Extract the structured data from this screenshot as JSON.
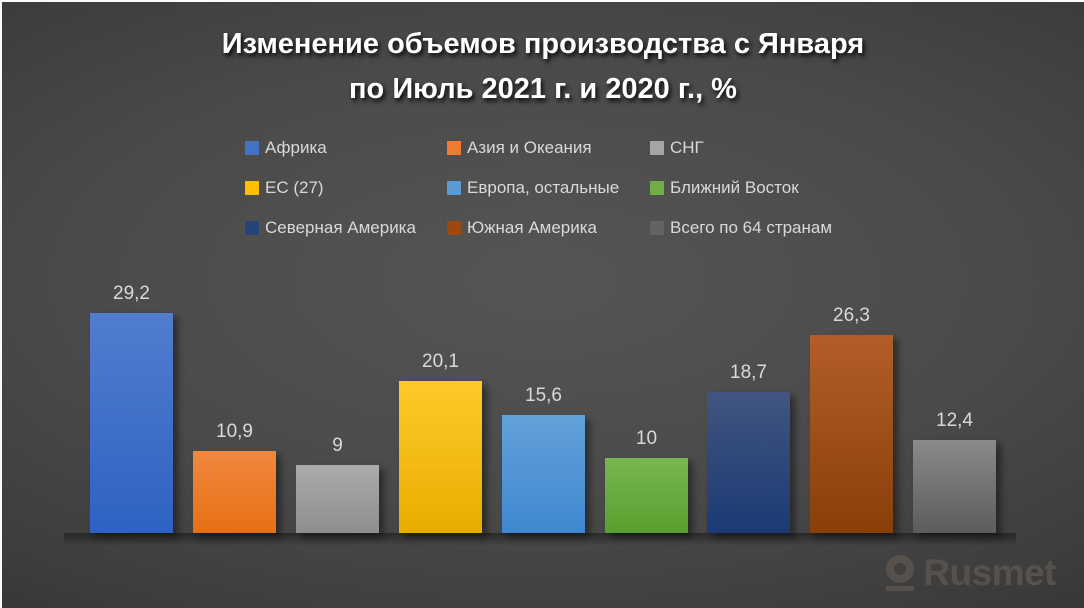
{
  "title": {
    "line1": "Изменение объемов производства с Января",
    "line2": "по Июль 2021 г. и 2020 г., %"
  },
  "logo": {
    "text": "Rusmet"
  },
  "colors": {
    "background_center": "#555555",
    "background_edge": "#232323",
    "title_text": "#ffffff",
    "label_text": "#d9d9d9",
    "logo_text": "#56514d",
    "edge_highlight": "#fbfbfb"
  },
  "chart_data": {
    "type": "bar",
    "title": "Изменение объемов производства с Января по Июль 2021 г. и 2020 г., %",
    "xlabel": "",
    "ylabel": "%",
    "ylim": [
      0,
      30
    ],
    "grid": false,
    "legend_position": "top",
    "decimal_separator": ",",
    "categories": [
      "Африка",
      "Азия и Океания",
      "СНГ",
      "ЕС (27)",
      "Европа, остальные",
      "Ближний Восток",
      "Северная Америка",
      "Южная Америка",
      "Всего по 64 странам"
    ],
    "values": [
      29.2,
      10.9,
      9,
      20.1,
      15.6,
      10,
      18.7,
      26.3,
      12.4
    ],
    "value_labels": [
      "29,2",
      "10,9",
      "9",
      "20,1",
      "15,6",
      "10",
      "18,7",
      "26,3",
      "12,4"
    ],
    "legend_colors": [
      "#4472c4",
      "#ed7d31",
      "#a5a5a5",
      "#ffc000",
      "#5b9bd5",
      "#70ad47",
      "#264478",
      "#9e480e",
      "#636363"
    ],
    "bar_gradient_top": [
      "#517dce",
      "#f0883e",
      "#ababab",
      "#ffc928",
      "#63a1da",
      "#77b74f",
      "#41557f",
      "#b25e28",
      "#8a8a8a"
    ],
    "bar_gradient_bottom": [
      "#2e61c3",
      "#e66f15",
      "#8e8e8e",
      "#e7ae00",
      "#3f88cf",
      "#58a02f",
      "#1b3a74",
      "#8a3f08",
      "#5c5c5c"
    ]
  }
}
